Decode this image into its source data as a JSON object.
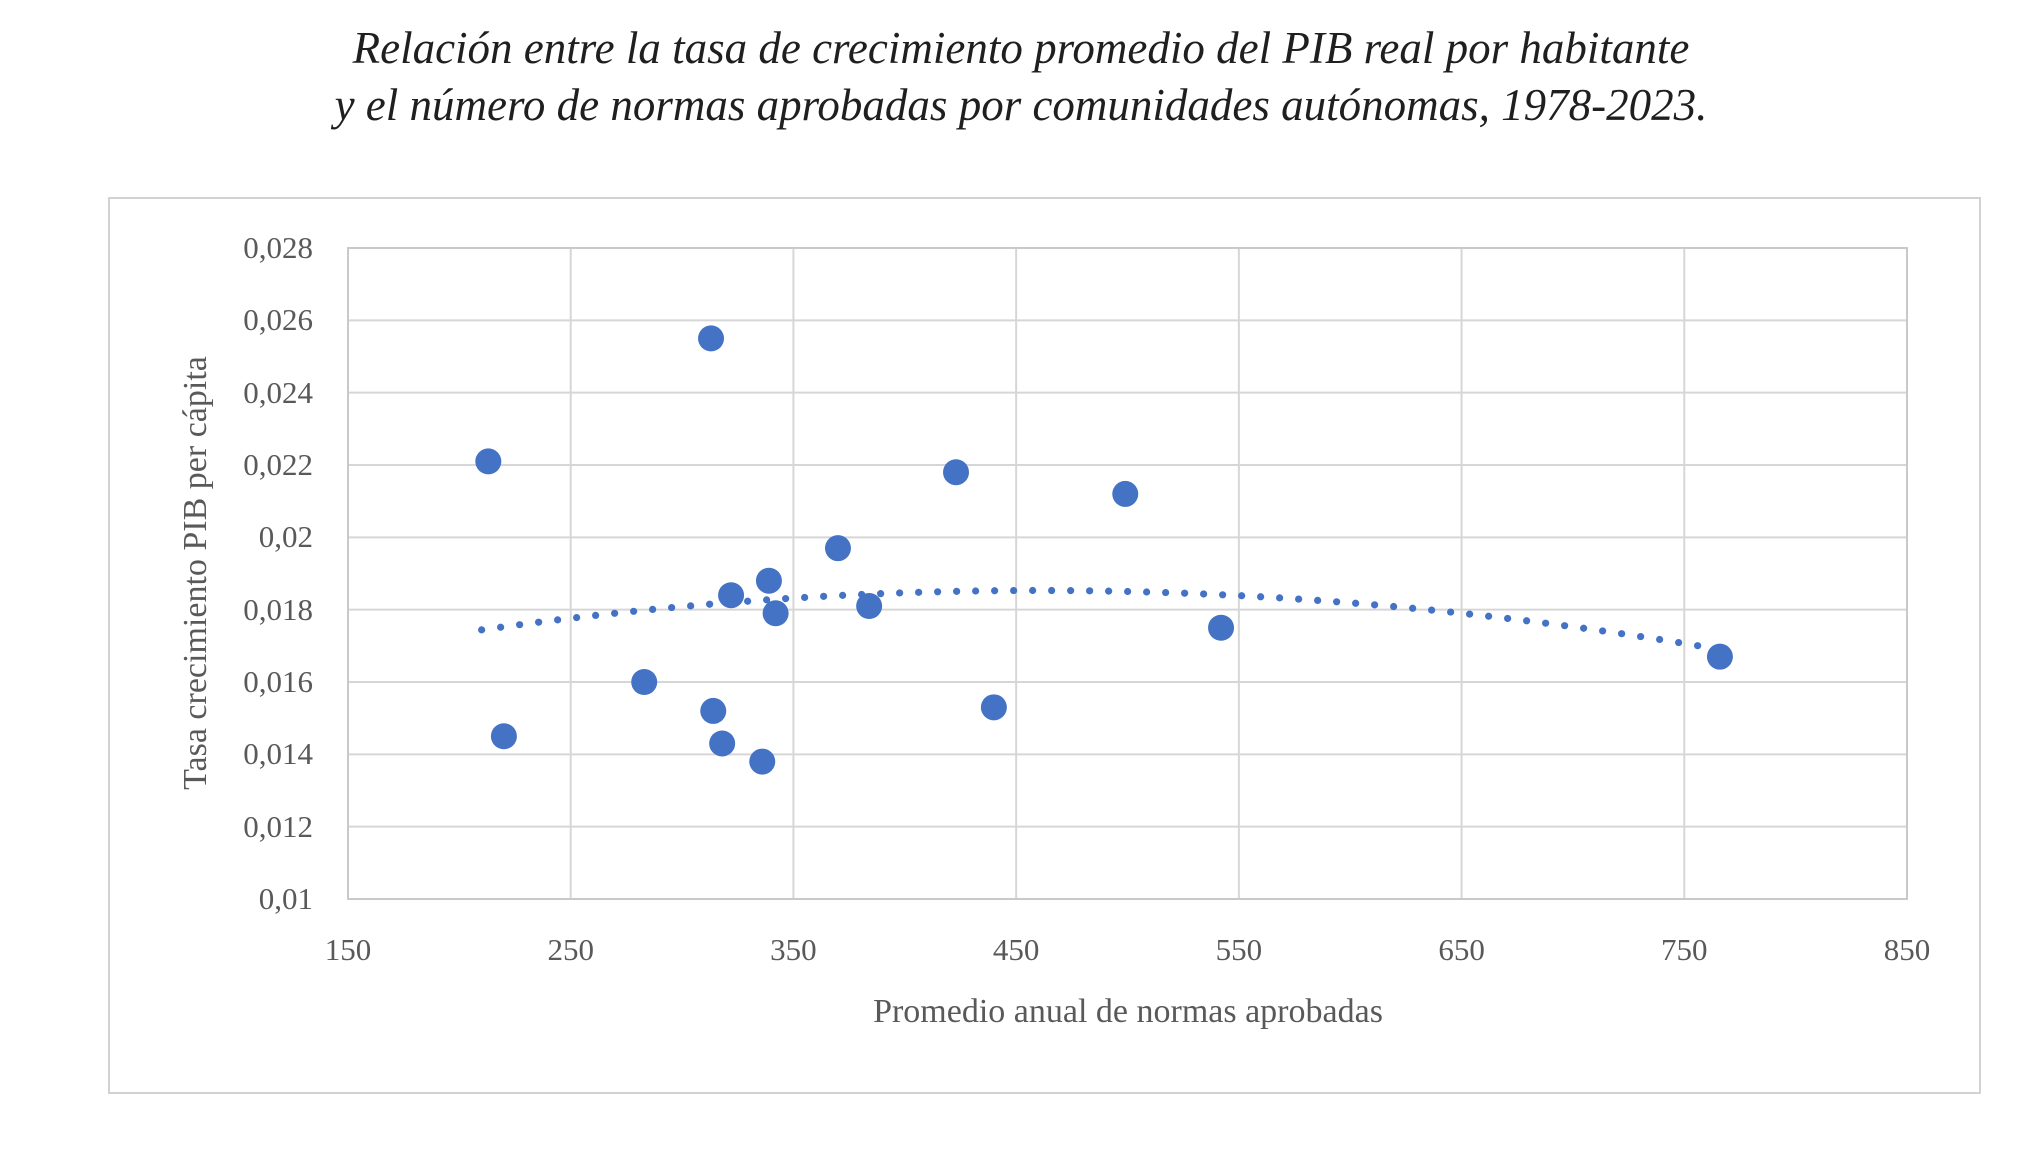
{
  "title": {
    "line1": "Relación entre la tasa de crecimiento promedio del PIB real por habitante",
    "line2": "y el número de normas aprobadas por comunidades autónomas, 1978-2023."
  },
  "chart_data": {
    "type": "scatter",
    "title": "Relación entre la tasa de crecimiento promedio del PIB real por habitante y el número de normas aprobadas por comunidades autónomas, 1978-2023.",
    "xlabel": "Promedio anual de normas aprobadas",
    "ylabel": "Tasa crecimiento PIB per cápita",
    "xlim": [
      150,
      850
    ],
    "ylim": [
      0.01,
      0.028
    ],
    "grid": true,
    "legend_position": "none",
    "x_ticks": [
      150,
      250,
      350,
      450,
      550,
      650,
      750,
      850
    ],
    "x_tick_labels": [
      "150",
      "250",
      "350",
      "450",
      "550",
      "650",
      "750",
      "850"
    ],
    "y_ticks": [
      0.01,
      0.012,
      0.014,
      0.016,
      0.018,
      0.02,
      0.022,
      0.024,
      0.026,
      0.028
    ],
    "y_tick_labels": [
      "0,01",
      "0,012",
      "0,014",
      "0,016",
      "0,018",
      "0,02",
      "0,022",
      "0,024",
      "0,026",
      "0,028"
    ],
    "points": [
      [
        213,
        0.0221
      ],
      [
        220,
        0.0145
      ],
      [
        283,
        0.016
      ],
      [
        313,
        0.0255
      ],
      [
        314,
        0.0152
      ],
      [
        318,
        0.0143
      ],
      [
        322,
        0.0184
      ],
      [
        336,
        0.0138
      ],
      [
        339,
        0.0188
      ],
      [
        342,
        0.0179
      ],
      [
        370,
        0.0197
      ],
      [
        384,
        0.0181
      ],
      [
        423,
        0.0218
      ],
      [
        440,
        0.0153
      ],
      [
        499,
        0.0212
      ],
      [
        542,
        0.0175
      ],
      [
        766,
        0.0167
      ]
    ],
    "trendline": {
      "kind": "polynomial",
      "order": 2,
      "vertex_x": 460,
      "vertex_y": 0.01853,
      "a": -1.742e-08,
      "x_start": 210,
      "x_end": 770,
      "style": "dotted"
    },
    "point_color": "#4472c4",
    "trendline_color": "#4472c4",
    "gridline_color": "#d6d6d6",
    "plot_border_color": "#c9c9c9",
    "axis_text_color": "#595959",
    "title_color": "#1f1f1f"
  }
}
